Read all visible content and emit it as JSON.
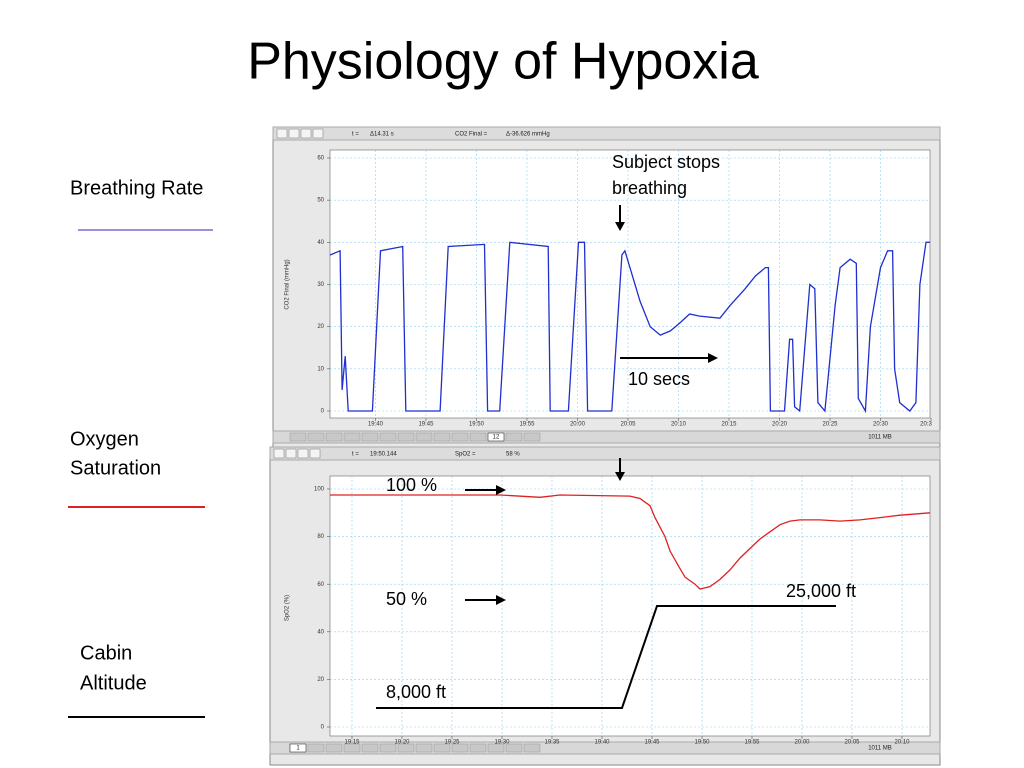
{
  "title": "Physiology of Hypoxia",
  "side_labels": {
    "breathing_rate": "Breathing Rate",
    "oxygen_saturation": [
      "Oxygen",
      "Saturation"
    ],
    "cabin_altitude": [
      "Cabin",
      "Altitude"
    ]
  },
  "annotations": {
    "stops_breathing": [
      "Subject stops",
      "breathing"
    ],
    "ten_secs": "10 secs",
    "hundred": "100 %",
    "fifty": "50 %",
    "low_alt": "8,000 ft",
    "high_alt": "25,000 ft"
  },
  "chart_data": [
    {
      "type": "line",
      "ylabel": "CO2 Final (mmHg)",
      "header": [
        "t =",
        "Δ14.31 s",
        "CO2 Final =",
        "Δ-36.626 mmHg"
      ],
      "page": "12",
      "memory": "1011 MB",
      "color": "#1f2fd0",
      "grid": true,
      "xlim": [
        1175.5,
        1234.9
      ],
      "ylim": [
        0,
        60
      ],
      "yticks": [
        0,
        10,
        20,
        30,
        40,
        50,
        60
      ],
      "xticks": [
        {
          "value": 1180,
          "label": "19:40"
        },
        {
          "value": 1185,
          "label": "19:45"
        },
        {
          "value": 1190,
          "label": "19:50"
        },
        {
          "value": 1195,
          "label": "19:55"
        },
        {
          "value": 1200,
          "label": "20:00"
        },
        {
          "value": 1205,
          "label": "20:05"
        },
        {
          "value": 1210,
          "label": "20:10"
        },
        {
          "value": 1215,
          "label": "20:15"
        },
        {
          "value": 1220,
          "label": "20:20"
        },
        {
          "value": 1225,
          "label": "20:25"
        },
        {
          "value": 1230,
          "label": "20:30"
        },
        {
          "value": 1235,
          "label": "20:3"
        }
      ],
      "x": [
        1175.5,
        1176.5,
        1176.7,
        1177.0,
        1177.3,
        1179.7,
        1180.5,
        1182.7,
        1183.0,
        1186.4,
        1187.2,
        1190.8,
        1191.1,
        1192.3,
        1193.3,
        1197.1,
        1197.3,
        1199.1,
        1200.1,
        1200.7,
        1201.0,
        1203.4,
        1204.4,
        1204.7,
        1206.2,
        1207.2,
        1208.2,
        1209.2,
        1210.2,
        1211.1,
        1212.1,
        1214.1,
        1215.1,
        1216.6,
        1217.6,
        1218.6,
        1218.9,
        1219.1,
        1220.5,
        1221.0,
        1221.3,
        1221.5,
        1222.0,
        1223.0,
        1223.5,
        1223.8,
        1224.5,
        1225.5,
        1226.0,
        1227.0,
        1227.6,
        1227.8,
        1228.5,
        1229.0,
        1230.0,
        1230.7,
        1231.2,
        1231.4,
        1231.9,
        1232.9,
        1233.5,
        1233.9,
        1234.5,
        1234.9
      ],
      "values": [
        37,
        38,
        5,
        13,
        0,
        0,
        38,
        39,
        0,
        0,
        39,
        39.5,
        0,
        0,
        40,
        39,
        0,
        0,
        40,
        40,
        0,
        0,
        37,
        38,
        26,
        20,
        18,
        19,
        21,
        23,
        22.5,
        22,
        25,
        29,
        32,
        34,
        34,
        0,
        0,
        17,
        17,
        1,
        0,
        30,
        29,
        2,
        0,
        25,
        34,
        36,
        35,
        3,
        0,
        20,
        34,
        38,
        38,
        10,
        2,
        0,
        2,
        30,
        40,
        40
      ]
    },
    {
      "type": "line",
      "ylabel": "SpO2 (%)",
      "header": [
        "t =",
        "19:50.144",
        "SpO2 =",
        "58 %"
      ],
      "page": "1",
      "memory": "1011 MB",
      "color": "#e02020",
      "grid": true,
      "xlim": [
        1152.8,
        1212.8
      ],
      "ylim": [
        0,
        100
      ],
      "yticks": [
        0,
        20,
        40,
        60,
        80,
        100
      ],
      "xticks": [
        {
          "value": 1155,
          "label": "19:15"
        },
        {
          "value": 1160,
          "label": "19:20"
        },
        {
          "value": 1165,
          "label": "19:25"
        },
        {
          "value": 1170,
          "label": "19:30"
        },
        {
          "value": 1175,
          "label": "19:35"
        },
        {
          "value": 1180,
          "label": "19:40"
        },
        {
          "value": 1185,
          "label": "19:45"
        },
        {
          "value": 1190,
          "label": "19:50"
        },
        {
          "value": 1195,
          "label": "19:55"
        },
        {
          "value": 1200,
          "label": "20:00"
        },
        {
          "value": 1205,
          "label": "20:05"
        },
        {
          "value": 1210,
          "label": "20:10"
        }
      ],
      "x": [
        1152.8,
        1169.8,
        1173.8,
        1175.8,
        1182.8,
        1183.8,
        1184.8,
        1185.3,
        1186.3,
        1186.8,
        1187.6,
        1188.3,
        1189.3,
        1189.8,
        1190.8,
        1191.8,
        1192.8,
        1193.8,
        1194.8,
        1195.8,
        1196.8,
        1197.8,
        1198.8,
        1199.8,
        1201.8,
        1203.8,
        1205.8,
        1207.8,
        1209.8,
        1212.8
      ],
      "values": [
        97.5,
        97.5,
        96.5,
        97.5,
        97,
        96,
        93,
        88,
        80,
        74,
        68,
        63,
        60,
        58,
        59,
        62,
        66,
        71,
        75,
        79,
        82,
        85,
        86.5,
        87,
        87,
        86.5,
        87,
        88,
        89,
        90
      ]
    }
  ]
}
